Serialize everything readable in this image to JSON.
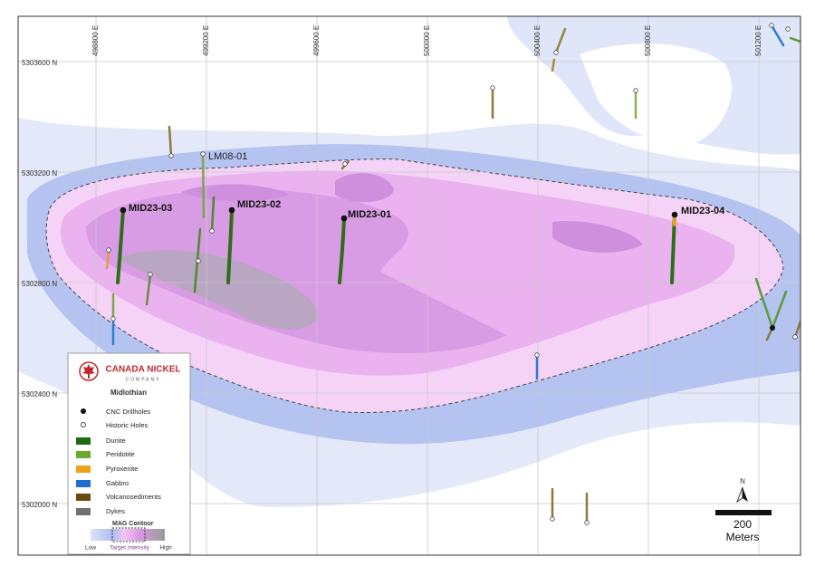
{
  "grid": {
    "eastings": [
      "498800 E",
      "499200 E",
      "499600 E",
      "500000 E",
      "500400 E",
      "500800 E",
      "501200 E"
    ],
    "northings": [
      "5303600 N",
      "5303200 N",
      "5302800 N",
      "5302400 N",
      "5302000 N"
    ]
  },
  "drillholes": {
    "cnc": [
      "MID23-03",
      "MID23-02",
      "MID23-01",
      "MID23-04"
    ],
    "historic": [
      "LM08-01"
    ]
  },
  "legend": {
    "company": {
      "name": "CANADA NICKEL",
      "sub": "COMPANY"
    },
    "project": "Midlothian",
    "symbols": [
      "CNC Drillholes",
      "Historic Holes"
    ],
    "lithology": [
      "Dunite",
      "Peridotite",
      "Pyroxenite",
      "Gabbro",
      "Volcanosediments",
      "Dykes"
    ],
    "mag_contour": {
      "title": "MAG Contour",
      "low": "Low",
      "target": "Target Intensity",
      "high": "High"
    }
  },
  "scale": {
    "distance": "200",
    "unit": "Meters"
  },
  "north": "N"
}
